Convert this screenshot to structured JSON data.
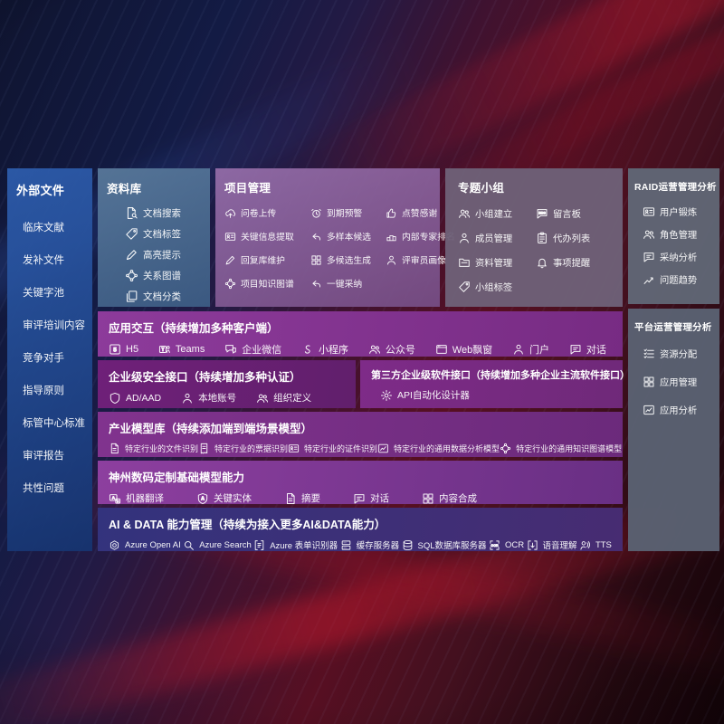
{
  "colors": {
    "sidebar_blue": "#2d5cac",
    "library_blue": "#58789a",
    "project_mauve": "#966eaa",
    "team_gray_purple": "#6e6178",
    "raid_slate": "#606675",
    "platform_slate": "#5a6172",
    "interaction_purple": "#8d3b9b",
    "security_purple": "#6f2079",
    "thirdparty_purple": "#7e2b88",
    "industry_purple": "#81338e",
    "base_purple": "#8d3f9f",
    "aidata_indigo": "#33337d",
    "background_red": "#570f22",
    "background_navy": "#131b44"
  },
  "sidebar": {
    "title": "外部文件",
    "items": [
      "临床文献",
      "发补文件",
      "关键字池",
      "审评培训内容",
      "竞争对手",
      "指导原则",
      "标管中心标准",
      "审评报告",
      "共性问题"
    ]
  },
  "panels": {
    "library": {
      "title": "资料库",
      "items": [
        {
          "icon": "doc-search",
          "label": "文档搜索"
        },
        {
          "icon": "tag",
          "label": "文档标签"
        },
        {
          "icon": "pen",
          "label": "高亮提示"
        },
        {
          "icon": "graph",
          "label": "关系图谱"
        },
        {
          "icon": "docs",
          "label": "文档分类"
        }
      ]
    },
    "project": {
      "title": "项目管理",
      "items": [
        {
          "icon": "cloud-up",
          "label": "问卷上传"
        },
        {
          "icon": "alarm",
          "label": "到期预警"
        },
        {
          "icon": "thumb",
          "label": "点赞感谢"
        },
        {
          "icon": "card",
          "label": "关键信息提取"
        },
        {
          "icon": "reply",
          "label": "多样本候选"
        },
        {
          "icon": "podium",
          "label": "内部专家排名"
        },
        {
          "icon": "pen",
          "label": "回复库维护"
        },
        {
          "icon": "grid",
          "label": "多候选生成"
        },
        {
          "icon": "person",
          "label": "评审员画像"
        },
        {
          "icon": "graph",
          "label": "项目知识图谱"
        },
        {
          "icon": "reply",
          "label": "一键采纳"
        }
      ]
    },
    "team": {
      "title": "专题小组",
      "items": [
        {
          "icon": "users",
          "label": "小组建立"
        },
        {
          "icon": "bbs",
          "label": "留言板"
        },
        {
          "icon": "person",
          "label": "成员管理"
        },
        {
          "icon": "clipboard",
          "label": "代办列表"
        },
        {
          "icon": "folder",
          "label": "资料管理"
        },
        {
          "icon": "bell",
          "label": "事项提醒"
        },
        {
          "icon": "tag",
          "label": "小组标签"
        }
      ]
    },
    "raid": {
      "title": "RAID运营管理分析",
      "items": [
        {
          "icon": "card",
          "label": "用户锻炼"
        },
        {
          "icon": "users",
          "label": "角色管理"
        },
        {
          "icon": "chat",
          "label": "采纳分析"
        },
        {
          "icon": "trend",
          "label": "问题趋势"
        }
      ]
    },
    "platform": {
      "title": "平台运营管理分析",
      "items": [
        {
          "icon": "list",
          "label": "资源分配"
        },
        {
          "icon": "grid",
          "label": "应用管理"
        },
        {
          "icon": "chartbox",
          "label": "应用分析"
        }
      ]
    }
  },
  "bands": {
    "interaction": {
      "title": "应用交互（持续增加多种客户端）",
      "items": [
        {
          "icon": "h5",
          "label": "H5"
        },
        {
          "icon": "teams",
          "label": "Teams"
        },
        {
          "icon": "wechat",
          "label": "企业微信"
        },
        {
          "icon": "mini",
          "label": "小程序"
        },
        {
          "icon": "users",
          "label": "公众号"
        },
        {
          "icon": "browser",
          "label": "Web飘窗"
        },
        {
          "icon": "person",
          "label": "门户"
        },
        {
          "icon": "chat",
          "label": "对话"
        }
      ]
    },
    "security": {
      "title": "企业级安全接口（持续增加多种认证）",
      "items": [
        {
          "icon": "shield",
          "label": "AD/AAD"
        },
        {
          "icon": "person",
          "label": "本地账号"
        },
        {
          "icon": "users",
          "label": "组织定义"
        }
      ]
    },
    "thirdparty": {
      "title": "第三方企业级软件接口（持续增加多种企业主流软件接口）",
      "items": [
        {
          "icon": "gear",
          "label": "API自动化设计器"
        }
      ]
    },
    "industry": {
      "title": "产业模型库（持续添加端到端场景模型）",
      "items": [
        {
          "icon": "doc",
          "label": "特定行业的文件识别"
        },
        {
          "icon": "receipt",
          "label": "特定行业的票据识别"
        },
        {
          "icon": "card",
          "label": "特定行业的证件识别"
        },
        {
          "icon": "chartbox",
          "label": "特定行业的通用数据分析模型"
        },
        {
          "icon": "graph",
          "label": "特定行业的通用知识图谱模型"
        }
      ]
    },
    "base": {
      "title": "神州数码定制基础模型能力",
      "items": [
        {
          "icon": "translate",
          "label": "机器翻译"
        },
        {
          "icon": "shield-a",
          "label": "关键实体"
        },
        {
          "icon": "doc",
          "label": "摘要"
        },
        {
          "icon": "chat",
          "label": "对话"
        },
        {
          "icon": "grid",
          "label": "内容合成"
        }
      ]
    },
    "aidata": {
      "title": "AI & DATA 能力管理（持续为接入更多AI&DATA能力）",
      "items": [
        {
          "icon": "openai",
          "label": "Azure Open AI"
        },
        {
          "icon": "search",
          "label": "Azure Search"
        },
        {
          "icon": "form",
          "label": "Azure 表单识别器"
        },
        {
          "icon": "server",
          "label": "缓存服务器"
        },
        {
          "icon": "db",
          "label": "SQL数据库服务器"
        },
        {
          "icon": "ocr",
          "label": "OCR"
        },
        {
          "icon": "voice",
          "label": "语音理解"
        },
        {
          "icon": "tts",
          "label": "TTS"
        }
      ]
    }
  }
}
